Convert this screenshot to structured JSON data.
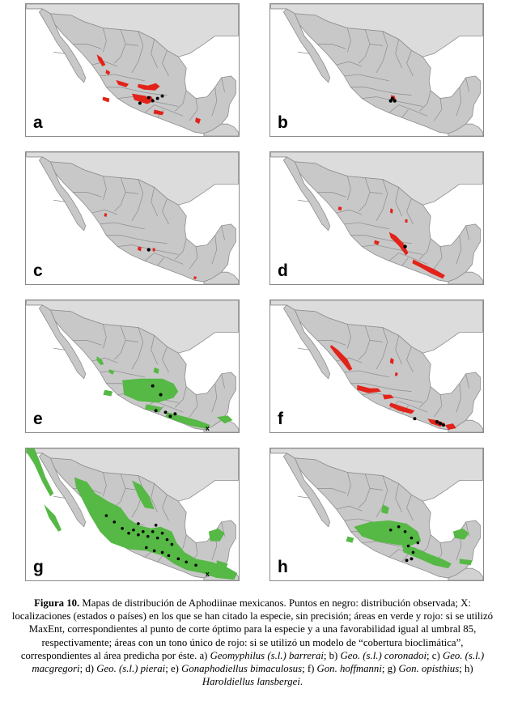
{
  "colors": {
    "land": "#c8c8c8",
    "border": "#8c8c8c",
    "red": "#e2231a",
    "green": "#56b845",
    "point": "#000000"
  },
  "panels": [
    {
      "label": "a",
      "color": "red"
    },
    {
      "label": "b",
      "color": "red"
    },
    {
      "label": "c",
      "color": "red"
    },
    {
      "label": "d",
      "color": "red"
    },
    {
      "label": "e",
      "color": "green"
    },
    {
      "label": "f",
      "color": "red"
    },
    {
      "label": "g",
      "color": "green"
    },
    {
      "label": "h",
      "color": "green"
    }
  ],
  "caption": {
    "fig": "Figura 10.",
    "t1": " Mapas de distribución de Aphodiinae mexicanos. Puntos en negro: distribución observada; X: localizaciones (estados o países) en los que se han citado la especie, sin precisión; áreas en verde y rojo: si se utilizó MaxEnt, correspondientes al punto de corte óptimo para la especie y a una favorabilidad igual al umbral 85, respectivamente; áreas con un tono único de rojo: si se utilizó un modelo de “cobertura bioclimática”, correspondientes al área predicha por éste. a) ",
    "s_a": "Geomyphilus (s.l.) barrerai",
    "t_b": "; b) ",
    "s_b": "Geo. (s.l.) coronadoi",
    "t_c": "; c) ",
    "s_c": "Geo. (s.l.) macgregori",
    "t_d": "; d) ",
    "s_d": "Geo. (s.l.) pierai",
    "t_e": "; e) ",
    "s_e": "Gonaphodiellus bimaculosus",
    "t_f": "; f) ",
    "s_f": "Gon. hoffmanni",
    "t_g": "; g) ",
    "s_g": "Gon. opisthius",
    "t_h": "; h) ",
    "s_h": "Haroldiellus lansbergei",
    "t_end": "."
  }
}
